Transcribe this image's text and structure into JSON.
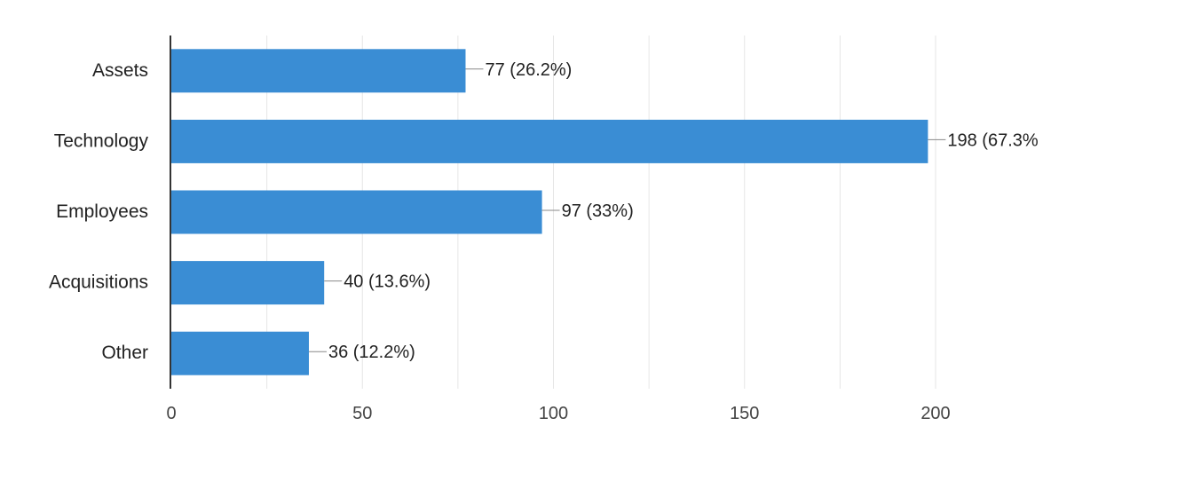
{
  "chart_data": {
    "type": "bar",
    "orientation": "horizontal",
    "categories": [
      "Assets",
      "Technology",
      "Employees",
      "Acquisitions",
      "Other"
    ],
    "values": [
      77,
      198,
      97,
      40,
      36
    ],
    "data_labels": [
      "77 (26.2%)",
      "198 (67.3%",
      "97 (33%)",
      "40 (13.6%)",
      "36 (12.2%)"
    ],
    "xlim": [
      0,
      200
    ],
    "x_ticks": [
      0,
      50,
      100,
      150,
      200
    ],
    "grid": true,
    "legend": "none",
    "title": "",
    "xlabel": "",
    "ylabel": "",
    "colors": {
      "bar": "#3a8dd4",
      "axis": "#333333",
      "grid": "#e6e6e6",
      "leader": "#888888"
    }
  }
}
